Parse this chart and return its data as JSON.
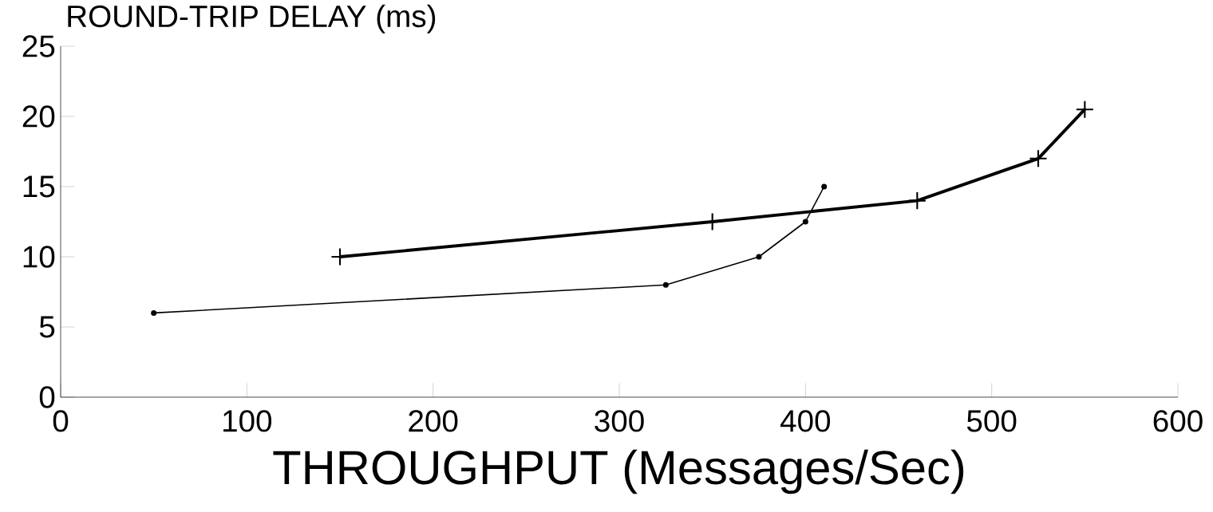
{
  "chart_data": {
    "type": "line",
    "xlabel": "THROUGHPUT (Messages/Sec)",
    "ylabel": "ROUND-TRIP DELAY (ms)",
    "series": [
      {
        "color": "#000000",
        "marker": "cross",
        "x": [
          150,
          350,
          460,
          525,
          550
        ],
        "values": [
          10,
          12.5,
          14,
          17,
          20.5
        ]
      },
      {
        "color": "#000000",
        "marker": "circle",
        "x": [
          50,
          325,
          375,
          400,
          410
        ],
        "values": [
          6,
          8,
          10,
          12.5,
          15
        ]
      }
    ],
    "xlim": [
      0,
      600
    ],
    "ylim": [
      0,
      25
    ],
    "xticks": [
      0,
      100,
      200,
      300,
      400,
      500,
      600
    ],
    "yticks": [
      0,
      5,
      10,
      15,
      20,
      25
    ],
    "grid": false
  }
}
